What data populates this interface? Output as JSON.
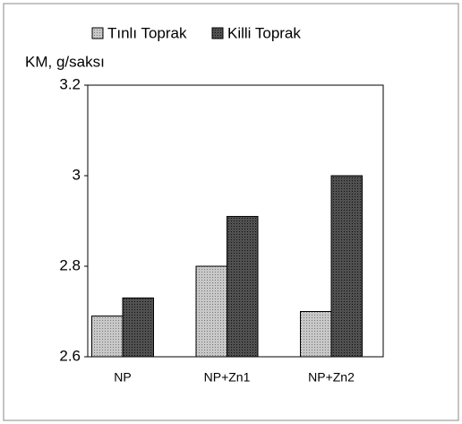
{
  "chart_data": {
    "type": "bar",
    "y_label": "KM, g/saksı",
    "categories": [
      "NP",
      "NP+Zn1",
      "NP+Zn2"
    ],
    "series": [
      {
        "name": "Tınlı Toprak",
        "color": "#c8c8c8",
        "values": [
          2.69,
          2.8,
          2.7
        ]
      },
      {
        "name": "Killi Toprak",
        "color": "#505050",
        "values": [
          2.73,
          2.91,
          3.0
        ]
      }
    ],
    "ylim": [
      2.6,
      3.2
    ],
    "yticks": [
      2.6,
      2.8,
      3,
      3.2
    ],
    "legend": "top"
  }
}
